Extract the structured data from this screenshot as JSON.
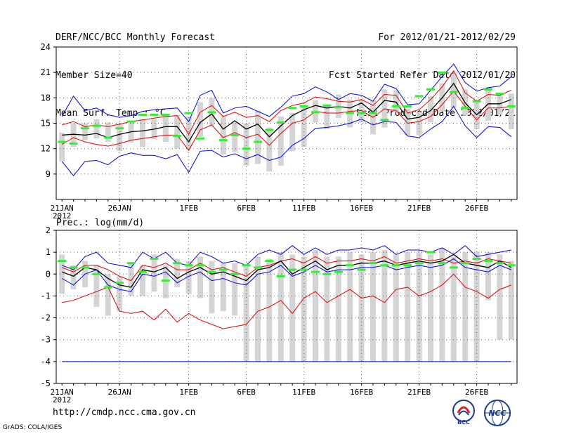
{
  "header": {
    "left": [
      "DERF/NCC/BCC Monthly Forecast",
      "Member Size=40",
      "Mean Surf. Temp.: °C"
    ],
    "right": [
      "For 2012/01/21-2012/02/29",
      "Fcst Started Refer Date 2012/01/20",
      "Fcst Produced Date 2012/01/21"
    ]
  },
  "footer": {
    "url": "http://cmdp.ncc.cma.gov.cn",
    "credit": "GrADS: COLA/IGES"
  },
  "logos": {
    "bcc_text": "BCC",
    "ncc_text": "NCC"
  },
  "colors": {
    "envelope": "#0000dd",
    "percentile": "#dd0000",
    "mean": "#000000",
    "observed": "#33ee33",
    "box": "#d4d4d4",
    "grid": "#666666",
    "floor": "#0000dd"
  },
  "chart_data": [
    {
      "type": "line",
      "title": "Mean Surf. Temp.: °C",
      "ylim": [
        6,
        24
      ],
      "yticks": [
        9,
        12,
        15,
        18,
        21,
        24
      ],
      "x_labels": [
        "21JAN",
        "26JAN",
        "1FEB",
        "6FEB",
        "11FEB",
        "16FEB",
        "21FEB",
        "26FEB"
      ],
      "x_label_days": [
        0,
        5,
        11,
        16,
        21,
        26,
        31,
        36
      ],
      "year_label": "2012",
      "days": 40,
      "series": [
        {
          "name": "max",
          "color": "#0000dd",
          "values": [
            15.8,
            18.2,
            16.5,
            16.8,
            16.0,
            15.7,
            15.9,
            16.4,
            16.6,
            16.7,
            16.8,
            15.2,
            18.3,
            18.9,
            16.2,
            16.8,
            17.0,
            16.4,
            15.8,
            16.9,
            18.2,
            18.5,
            19.3,
            18.7,
            17.8,
            18.5,
            18.3,
            17.6,
            19.6,
            19.1,
            17.2,
            17.3,
            18.9,
            20.5,
            22.0,
            19.8,
            18.8,
            19.2,
            19.4,
            20.5
          ]
        },
        {
          "name": "p90",
          "color": "#dd0000",
          "values": [
            14.8,
            15.2,
            14.6,
            14.8,
            14.6,
            14.9,
            15.2,
            15.4,
            15.6,
            15.8,
            15.9,
            13.7,
            16.3,
            17.1,
            15.8,
            16.3,
            15.7,
            15.9,
            15.2,
            16.5,
            17.1,
            17.4,
            18.1,
            17.9,
            17.6,
            17.5,
            17.8,
            17.1,
            18.4,
            18.3,
            16.2,
            16.6,
            17.8,
            19.3,
            21.2,
            18.6,
            17.6,
            18.4,
            18.3,
            18.9
          ]
        },
        {
          "name": "mean",
          "color": "#000000",
          "values": [
            13.6,
            13.7,
            13.6,
            13.8,
            13.3,
            13.7,
            14.0,
            14.1,
            14.3,
            14.6,
            14.6,
            12.8,
            15.1,
            16.1,
            14.3,
            15.3,
            14.3,
            14.9,
            13.4,
            14.7,
            15.9,
            16.6,
            17.1,
            16.8,
            17.0,
            16.8,
            17.4,
            16.3,
            17.7,
            17.5,
            15.5,
            15.7,
            16.5,
            18.0,
            19.7,
            17.4,
            16.0,
            17.3,
            17.3,
            17.8
          ]
        },
        {
          "name": "p10",
          "color": "#dd0000",
          "values": [
            12.5,
            13.3,
            12.8,
            12.5,
            12.3,
            12.6,
            13.0,
            13.2,
            13.4,
            13.6,
            13.6,
            11.8,
            14.2,
            14.8,
            13.3,
            13.9,
            13.3,
            13.7,
            12.4,
            13.8,
            15.0,
            15.4,
            16.4,
            16.2,
            16.2,
            16.4,
            16.5,
            15.7,
            16.7,
            16.5,
            15.0,
            15.2,
            15.8,
            17.2,
            18.8,
            17.0,
            15.4,
            16.8,
            16.8,
            17.0
          ]
        },
        {
          "name": "min",
          "color": "#0000dd",
          "values": [
            10.5,
            8.8,
            10.5,
            10.6,
            10.1,
            11.1,
            11.5,
            11.2,
            11.2,
            10.8,
            11.3,
            9.2,
            11.7,
            11.8,
            11.0,
            11.4,
            10.8,
            11.3,
            10.6,
            11.0,
            12.4,
            13.2,
            14.4,
            14.5,
            14.7,
            15.0,
            15.5,
            14.8,
            15.2,
            15.1,
            13.5,
            13.3,
            14.3,
            15.2,
            17.0,
            14.7,
            13.3,
            14.6,
            14.5,
            13.4
          ]
        }
      ],
      "boxes": [
        [
          10.5,
          13.9
        ],
        [
          12.2,
          15.0
        ],
        [
          13.0,
          15.0
        ],
        [
          13.2,
          15.5
        ],
        [
          12.8,
          15.1
        ],
        [
          11.7,
          14.9
        ],
        [
          12.7,
          15.3
        ],
        [
          12.2,
          15.5
        ],
        [
          13.1,
          15.5
        ],
        [
          12.8,
          16.0
        ],
        [
          12.0,
          16.0
        ],
        [
          12.0,
          15.8
        ],
        [
          13.4,
          17.5
        ],
        [
          14.7,
          18.0
        ],
        [
          11.3,
          15.9
        ],
        [
          11.6,
          15.2
        ],
        [
          10.0,
          15.0
        ],
        [
          10.2,
          16.5
        ],
        [
          9.3,
          14.5
        ],
        [
          10.0,
          15.8
        ],
        [
          11.7,
          16.2
        ],
        [
          12.2,
          17.2
        ],
        [
          15.1,
          17.7
        ],
        [
          14.3,
          17.2
        ],
        [
          15.6,
          18.4
        ],
        [
          14.5,
          17.8
        ],
        [
          15.1,
          17.8
        ],
        [
          13.7,
          17.7
        ],
        [
          14.5,
          19.0
        ],
        [
          16.3,
          18.9
        ],
        [
          13.6,
          16.7
        ],
        [
          13.6,
          16.3
        ],
        [
          15.1,
          18.2
        ],
        [
          16.4,
          19.7
        ],
        [
          16.8,
          20.9
        ],
        [
          15.9,
          19.0
        ],
        [
          14.3,
          17.8
        ],
        [
          15.3,
          19.3
        ],
        [
          16.0,
          18.5
        ],
        [
          14.3,
          18.5
        ]
      ],
      "observed": [
        12.8,
        12.6,
        14.4,
        14.7,
        13.3,
        14.4,
        15.2,
        16.0,
        16.0,
        16.0,
        13.5,
        16.2,
        13.2,
        16.3,
        13.0,
        13.6,
        12.0,
        12.8,
        14.2,
        15.1,
        16.8,
        17.0,
        16.3,
        17.1,
        16.9,
        16.2,
        16.2,
        16.2,
        15.4,
        17.0,
        17.0,
        18.2,
        19.0,
        21.0,
        18.7,
        16.8,
        17.6,
        19.0,
        18.5,
        17.0
      ]
    },
    {
      "type": "line",
      "title": "Prec.: log(mm/d)",
      "ylim": [
        -5,
        2
      ],
      "yticks": [
        -5,
        -4,
        -3,
        -2,
        -1,
        0,
        1,
        2
      ],
      "x_labels": [
        "21JAN",
        "26JAN",
        "1FEB",
        "6FEB",
        "11FEB",
        "16FEB",
        "21FEB",
        "26FEB"
      ],
      "x_label_days": [
        0,
        5,
        11,
        16,
        21,
        26,
        31,
        36
      ],
      "year_label": "2012",
      "days": 40,
      "floor_value": -4,
      "series": [
        {
          "name": "max",
          "color": "#0000dd",
          "values": [
            0.4,
            0.2,
            0.8,
            1.0,
            0.5,
            0.4,
            0.3,
            1.0,
            0.7,
            1.0,
            0.5,
            0.4,
            1.0,
            0.8,
            0.5,
            0.6,
            0.4,
            0.9,
            1.1,
            0.9,
            1.3,
            0.9,
            1.2,
            0.9,
            1.1,
            1.1,
            1.2,
            1.1,
            1.3,
            0.9,
            1.1,
            1.1,
            1.0,
            1.2,
            0.9,
            1.3,
            0.8,
            0.9,
            1.0,
            1.1
          ]
        },
        {
          "name": "p90",
          "color": "#dd0000",
          "values": [
            0.3,
            0.1,
            0.4,
            0.4,
            0.2,
            -0.1,
            -0.3,
            0.4,
            0.3,
            0.5,
            0.2,
            0.2,
            0.5,
            0.2,
            0.3,
            0.1,
            -0.1,
            0.3,
            0.4,
            0.6,
            0.7,
            0.5,
            0.8,
            0.5,
            0.6,
            0.6,
            0.7,
            0.6,
            0.8,
            0.5,
            0.6,
            0.7,
            0.6,
            0.7,
            0.5,
            0.6,
            0.5,
            0.7,
            0.6,
            0.5
          ]
        },
        {
          "name": "mean",
          "color": "#000000",
          "values": [
            0.1,
            -0.1,
            0.3,
            0.2,
            -0.2,
            -0.5,
            -0.6,
            0.2,
            0.1,
            0.3,
            -0.2,
            0.1,
            0.3,
            0.0,
            0.1,
            -0.1,
            -0.3,
            0.2,
            0.3,
            0.6,
            0.0,
            0.3,
            0.6,
            0.2,
            0.4,
            0.4,
            0.5,
            0.5,
            0.6,
            0.4,
            0.5,
            0.6,
            0.5,
            0.6,
            0.9,
            0.5,
            0.4,
            0.3,
            0.6,
            0.3
          ]
        },
        {
          "name": "p10",
          "color": "#dd0000",
          "values": [
            -1.3,
            -1.2,
            -1.0,
            -0.8,
            -0.6,
            -1.7,
            -1.8,
            -1.7,
            -2.1,
            -1.6,
            -2.2,
            -1.8,
            -2.1,
            -2.3,
            -2.5,
            -2.4,
            -2.3,
            -1.7,
            -1.5,
            -1.2,
            -1.8,
            -1.1,
            -0.8,
            -1.3,
            -1.0,
            -0.7,
            -1.1,
            -1.0,
            -1.3,
            -0.7,
            -0.6,
            -1.0,
            -0.8,
            -0.5,
            0.0,
            -0.6,
            -0.8,
            -1.1,
            -0.7,
            -0.5
          ]
        },
        {
          "name": "min",
          "color": "#0000dd",
          "values": [
            -0.2,
            -0.5,
            0.0,
            0.2,
            -0.5,
            -0.7,
            -0.8,
            0.0,
            -0.1,
            0.1,
            -0.4,
            -0.1,
            0.1,
            -0.3,
            -0.2,
            -0.4,
            -0.5,
            0.0,
            0.1,
            0.4,
            -0.1,
            0.1,
            0.4,
            0.1,
            0.2,
            0.2,
            0.3,
            0.3,
            0.4,
            0.2,
            0.3,
            0.4,
            0.3,
            0.4,
            0.7,
            0.3,
            0.2,
            0.1,
            0.4,
            0.2
          ]
        }
      ],
      "boxes": [
        [
          -0.9,
          0.9
        ],
        [
          -0.7,
          0.4
        ],
        [
          -0.6,
          0.6
        ],
        [
          -1.5,
          0.4
        ],
        [
          -1.9,
          0.0
        ],
        [
          -1.7,
          -0.1
        ],
        [
          -1.0,
          0.5
        ],
        [
          -1.0,
          0.4
        ],
        [
          -0.8,
          0.9
        ],
        [
          -1.1,
          0.4
        ],
        [
          -0.6,
          0.7
        ],
        [
          -0.9,
          0.6
        ],
        [
          -1.1,
          0.8
        ],
        [
          -1.8,
          0.6
        ],
        [
          -1.7,
          0.5
        ],
        [
          -1.9,
          0.5
        ],
        [
          -4.0,
          0.4
        ],
        [
          -4.0,
          0.8
        ],
        [
          -4.0,
          0.7
        ],
        [
          -4.0,
          1.0
        ],
        [
          -4.0,
          0.9
        ],
        [
          -4.0,
          0.8
        ],
        [
          -4.0,
          1.1
        ],
        [
          -4.0,
          0.8
        ],
        [
          -4.0,
          0.8
        ],
        [
          -4.0,
          1.0
        ],
        [
          -4.0,
          0.9
        ],
        [
          -4.0,
          1.0
        ],
        [
          -4.0,
          1.1
        ],
        [
          -4.0,
          0.9
        ],
        [
          -4.0,
          1.0
        ],
        [
          -4.0,
          1.0
        ],
        [
          -4.0,
          0.9
        ],
        [
          -4.0,
          1.2
        ],
        [
          -4.0,
          0.8
        ],
        [
          -4.0,
          1.0
        ],
        [
          -4.0,
          1.0
        ],
        [
          -1.2,
          1.0
        ],
        [
          -3.0,
          0.9
        ],
        [
          -3.0,
          0.6
        ]
      ],
      "observed": [
        0.6,
        0.3,
        0.3,
        0.0,
        -0.6,
        -0.4,
        0.5,
        0.1,
        0.7,
        -0.3,
        0.5,
        0.4,
        0.4,
        0.1,
        0.2,
        0.0,
        0.4,
        0.3,
        0.6,
        -0.1,
        0.2,
        0.2,
        0.1,
        0.0,
        0.1,
        0.4,
        0.2,
        0.5,
        0.4,
        0.4,
        0.4,
        0.5,
        1.0,
        0.5,
        0.3,
        0.5,
        0.7,
        0.6,
        0.5,
        0.4
      ]
    }
  ]
}
